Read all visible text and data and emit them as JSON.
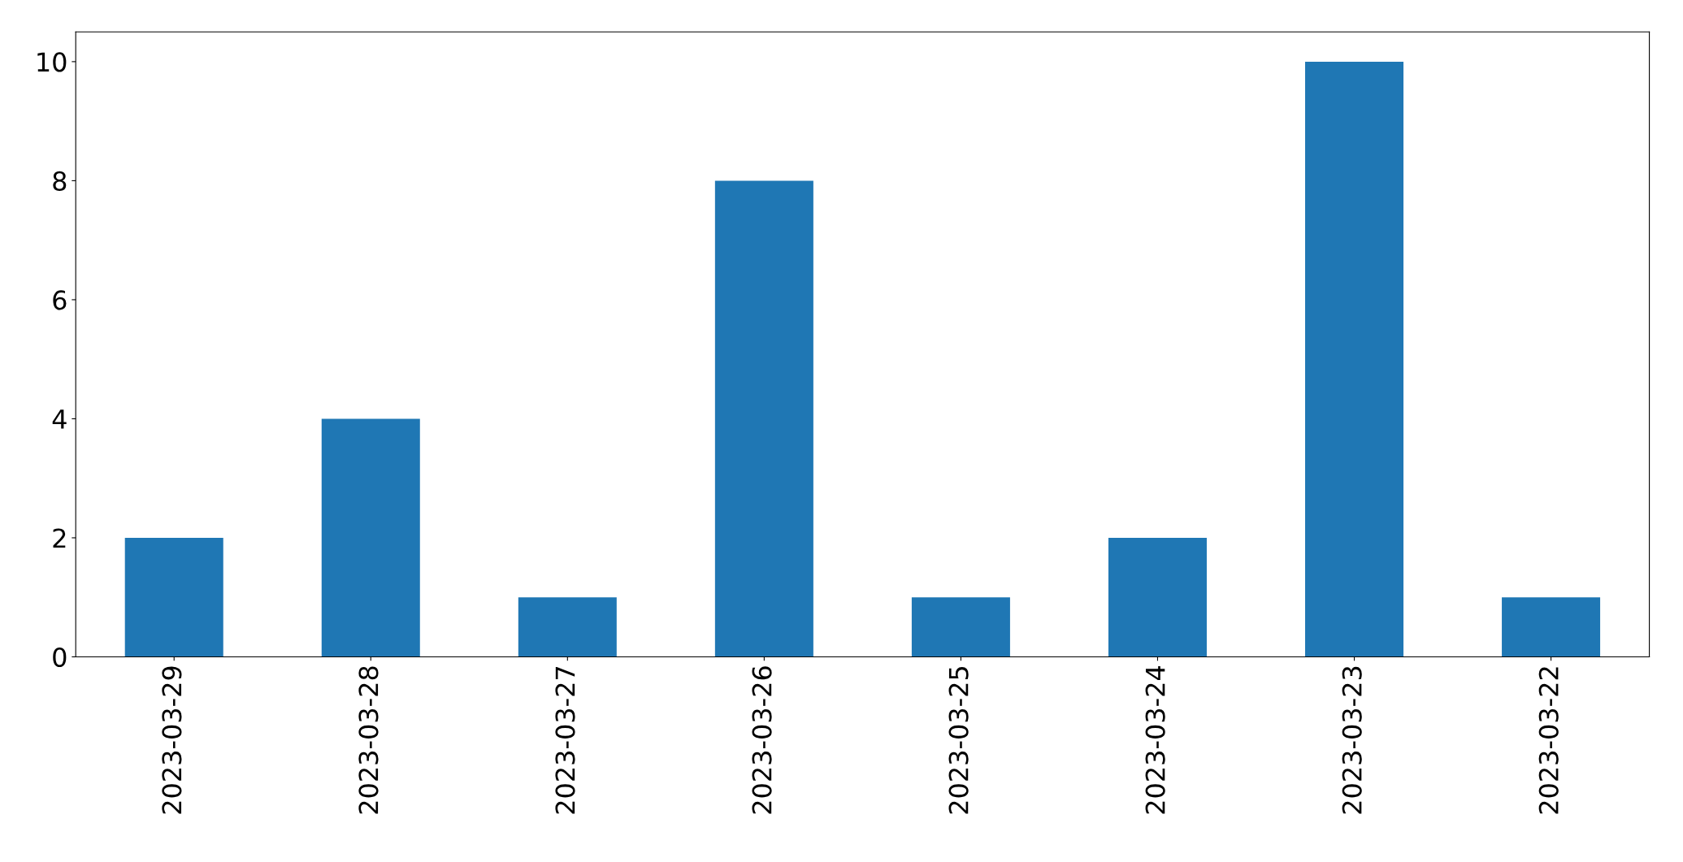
{
  "chart_data": {
    "type": "bar",
    "categories": [
      "2023-03-29",
      "2023-03-28",
      "2023-03-27",
      "2023-03-26",
      "2023-03-25",
      "2023-03-24",
      "2023-03-23",
      "2023-03-22"
    ],
    "values": [
      2,
      4,
      1,
      8,
      1,
      2,
      10,
      1
    ],
    "color": "#1f77b4",
    "ylim": [
      0,
      10.5
    ],
    "yticks": [
      0,
      2,
      4,
      6,
      8,
      10
    ],
    "grid": false
  }
}
